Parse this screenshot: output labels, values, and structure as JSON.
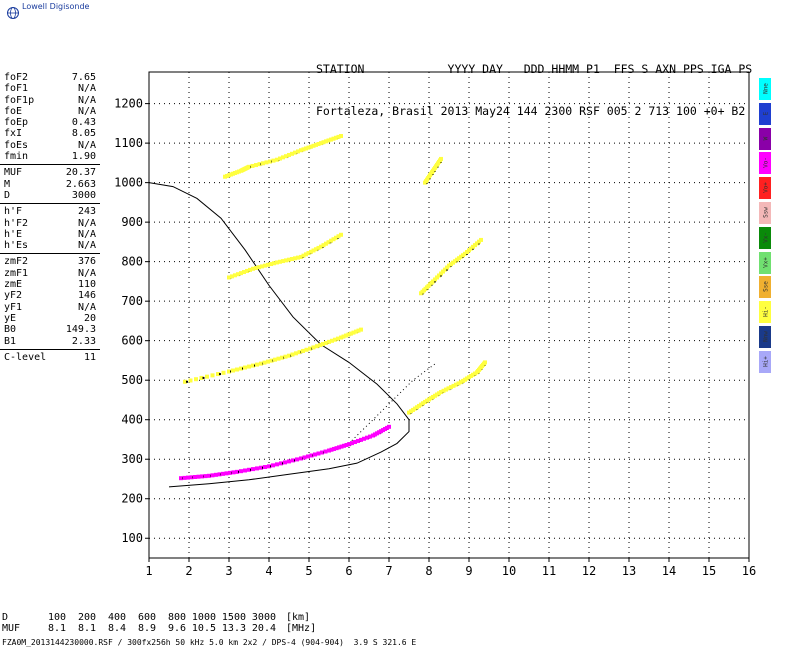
{
  "logo": {
    "text": "Lowell Digisonde",
    "icon": "globe-icon"
  },
  "header": {
    "line1": "STATION            YYYY DAY   DDD HHMM P1  FFS S AXN PPS IGA PS",
    "line2": "Fortaleza, Brasil 2013 May24 144 2300 RSF 005 2 713 100 +0+ B2"
  },
  "params": [
    {
      "k": "foF2",
      "v": "7.65"
    },
    {
      "k": "foF1",
      "v": "N/A"
    },
    {
      "k": "foF1p",
      "v": "N/A"
    },
    {
      "k": "foE",
      "v": "N/A"
    },
    {
      "k": "foEp",
      "v": "0.43"
    },
    {
      "k": "fxI",
      "v": "8.05"
    },
    {
      "k": "foEs",
      "v": "N/A"
    },
    {
      "k": "fmin",
      "v": "1.90"
    },
    {
      "sep": true
    },
    {
      "k": "MUF",
      "v": "20.37"
    },
    {
      "k": "M",
      "v": "2.663"
    },
    {
      "k": "D",
      "v": "3000"
    },
    {
      "sep": true
    },
    {
      "k": "h'F",
      "v": "243"
    },
    {
      "k": "h'F2",
      "v": "N/A"
    },
    {
      "k": "h'E",
      "v": "N/A"
    },
    {
      "k": "h'Es",
      "v": "N/A"
    },
    {
      "sep": true
    },
    {
      "k": "zmF2",
      "v": "376"
    },
    {
      "k": "zmF1",
      "v": "N/A"
    },
    {
      "k": "zmE",
      "v": "110"
    },
    {
      "k": "yF2",
      "v": "146"
    },
    {
      "k": "yF1",
      "v": "N/A"
    },
    {
      "k": "yE",
      "v": "20"
    },
    {
      "k": "B0",
      "v": "149.3"
    },
    {
      "k": "B1",
      "v": "2.33"
    },
    {
      "sep": true
    },
    {
      "k": "C-level",
      "v": "11"
    }
  ],
  "legend": [
    {
      "label": "Nne",
      "color": "#00ffff"
    },
    {
      "label": "E",
      "color": "#1f3fd0"
    },
    {
      "label": "W",
      "color": "#8a00a8"
    },
    {
      "label": "Vo-",
      "color": "#ff00ff"
    },
    {
      "label": "Vo+",
      "color": "#ff2020"
    },
    {
      "label": "Ssw",
      "color": "#f4b8b8"
    },
    {
      "label": "Vx-",
      "color": "#0a8a0a"
    },
    {
      "label": "Vx+",
      "color": "#70e070"
    },
    {
      "label": "Sse",
      "color": "#f0b030"
    },
    {
      "label": "Hi-",
      "color": "#ffff40"
    },
    {
      "label": "Nnw",
      "color": "#1a3a8a"
    },
    {
      "label": "Hi+",
      "color": "#a8a8f8"
    }
  ],
  "footer": {
    "row1": {
      "head": "D",
      "vals": [
        "100",
        "200",
        "400",
        "600",
        "800",
        "1000",
        "1500",
        "3000"
      ],
      "unit": "[km]"
    },
    "row2": {
      "head": "MUF",
      "vals": [
        "8.1",
        "8.1",
        "8.4",
        "8.9",
        "9.6",
        "10.5",
        "13.3",
        "20.4"
      ],
      "unit": "[MHz]"
    },
    "file": "FZA0M_2013144230000.RSF / 300fx256h 50 kHz 5.0 km 2x2 / DPS-4 (904-904)  3.9 S 321.6 E"
  },
  "chart_data": {
    "type": "scatter",
    "xlim": [
      1,
      16
    ],
    "ylim": [
      50,
      1280
    ],
    "x_ticks": [
      1,
      2,
      3,
      4,
      5,
      6,
      7,
      8,
      9,
      10,
      11,
      12,
      13,
      14,
      15,
      16
    ],
    "y_ticks": [
      100,
      200,
      300,
      400,
      500,
      600,
      700,
      800,
      900,
      1000,
      1100,
      1200
    ],
    "grid": true,
    "traces": [
      {
        "name": "o-trace 1st hop",
        "color": "#ff00ff",
        "points": [
          [
            1.8,
            252
          ],
          [
            2.5,
            258
          ],
          [
            3.2,
            268
          ],
          [
            4.0,
            282
          ],
          [
            4.8,
            302
          ],
          [
            5.5,
            322
          ],
          [
            6.0,
            338
          ],
          [
            6.6,
            360
          ],
          [
            7.0,
            382
          ]
        ]
      },
      {
        "name": "o-trace 2nd hop",
        "color": "#ffff40",
        "points": [
          [
            1.9,
            496
          ],
          [
            3.0,
            522
          ],
          [
            3.8,
            542
          ],
          [
            4.5,
            562
          ],
          [
            5.2,
            586
          ],
          [
            5.8,
            608
          ],
          [
            6.3,
            628
          ]
        ]
      },
      {
        "name": "o-trace 3rd hop",
        "color": "#ffff40",
        "points": [
          [
            3.0,
            760
          ],
          [
            3.6,
            782
          ],
          [
            4.2,
            798
          ],
          [
            4.8,
            812
          ],
          [
            5.3,
            838
          ],
          [
            5.8,
            868
          ]
        ]
      },
      {
        "name": "o-trace 4th hop",
        "color": "#ffff40",
        "points": [
          [
            2.9,
            1015
          ],
          [
            3.3,
            1030
          ],
          [
            3.5,
            1040
          ],
          [
            4.2,
            1058
          ],
          [
            4.8,
            1082
          ],
          [
            5.3,
            1100
          ],
          [
            5.8,
            1118
          ]
        ]
      },
      {
        "name": "x-trace 1st hop",
        "color": "#ffff40",
        "points": [
          [
            7.5,
            418
          ],
          [
            7.9,
            445
          ],
          [
            8.3,
            470
          ],
          [
            8.8,
            495
          ],
          [
            9.2,
            520
          ],
          [
            9.4,
            545
          ]
        ]
      },
      {
        "name": "x-trace 2nd hop",
        "color": "#ffff40",
        "points": [
          [
            7.8,
            720
          ],
          [
            8.1,
            750
          ],
          [
            8.5,
            790
          ],
          [
            8.9,
            820
          ],
          [
            9.3,
            855
          ]
        ]
      },
      {
        "name": "x-trace 3rd hop",
        "color": "#ffff40",
        "points": [
          [
            7.9,
            1000
          ],
          [
            8.1,
            1030
          ],
          [
            8.3,
            1060
          ]
        ]
      }
    ],
    "profile": {
      "name": "electron density profile",
      "color": "#000000",
      "points": [
        [
          1.5,
          230
        ],
        [
          2.5,
          238
        ],
        [
          3.5,
          248
        ],
        [
          4.5,
          262
        ],
        [
          5.5,
          276
        ],
        [
          6.2,
          290
        ],
        [
          6.8,
          318
        ],
        [
          7.2,
          340
        ],
        [
          7.5,
          370
        ],
        [
          7.5,
          400
        ],
        [
          7.2,
          440
        ],
        [
          6.7,
          490
        ],
        [
          6.0,
          545
        ],
        [
          5.3,
          590
        ],
        [
          4.6,
          660
        ],
        [
          4.0,
          740
        ],
        [
          3.4,
          830
        ],
        [
          2.8,
          910
        ],
        [
          2.2,
          960
        ],
        [
          1.6,
          990
        ],
        [
          1.0,
          1000
        ]
      ]
    },
    "aux_line": {
      "color": "#000000",
      "points": [
        [
          6.0,
          340
        ],
        [
          6.8,
          420
        ],
        [
          7.6,
          500
        ],
        [
          8.2,
          545
        ]
      ]
    }
  }
}
